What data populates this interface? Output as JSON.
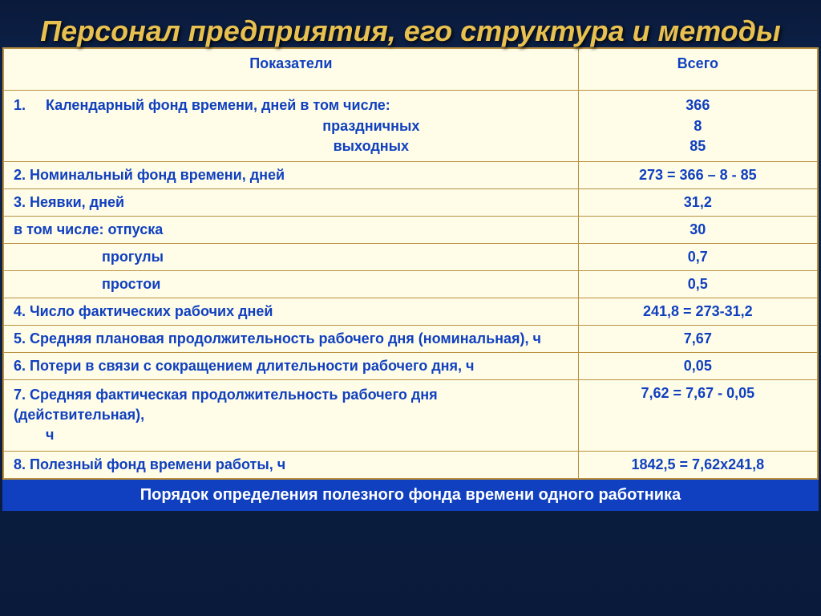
{
  "title": "Персонал предприятия, его структура и методы",
  "columns": {
    "left": "Показатели",
    "right": "Всего"
  },
  "rows": [
    {
      "label_html": "1.&nbsp;&nbsp;&nbsp;&nbsp;&nbsp;Календарный фонд времени, дней в том числе:<br><span style='display:block;text-align:center;padding-left:200px'>праздничных</span><span style='display:block;text-align:center;padding-left:200px'>выходных</span>",
      "value_html": "366<br>8<br>85"
    },
    {
      "label": "2. Номинальный фонд времени, дней",
      "value": "273 = 366 – 8 - 85"
    },
    {
      "label": "3. Неявки, дней",
      "value": "31,2"
    },
    {
      "label": "в том числе: отпуска",
      "value": "30"
    },
    {
      "label_html": "<span style='padding-left:110px'>прогулы</span>",
      "value": "0,7"
    },
    {
      "label_html": "<span style='padding-left:110px'>простои</span>",
      "value": "0,5"
    },
    {
      "label": "4. Число фактических рабочих дней",
      "value": "241,8 = 273-31,2"
    },
    {
      "label": "5. Средняя плановая продолжительность рабочего дня (номинальная), ч",
      "value": "7,67"
    },
    {
      "label": "6. Потери в связи с сокращением длительности рабочего дня, ч",
      "value": "0,05"
    },
    {
      "label_html": "7. Средняя фактическая продолжительность рабочего дня (действительная),<br><span style='padding-left:40px'>ч</span>",
      "value": "7,62 = 7,67 - 0,05"
    },
    {
      "label": "8. Полезный фонд времени работы, ч",
      "value": "1842,5 = 7,62х241,8"
    }
  ],
  "footer": "Порядок определения полезного фонда времени одного работника",
  "colors": {
    "title": "#e8c050",
    "cell_text": "#1040c0",
    "cell_bg": "#fffde8",
    "border": "#b89040",
    "footer_bg": "#1040c0",
    "footer_text": "#ffffff"
  }
}
